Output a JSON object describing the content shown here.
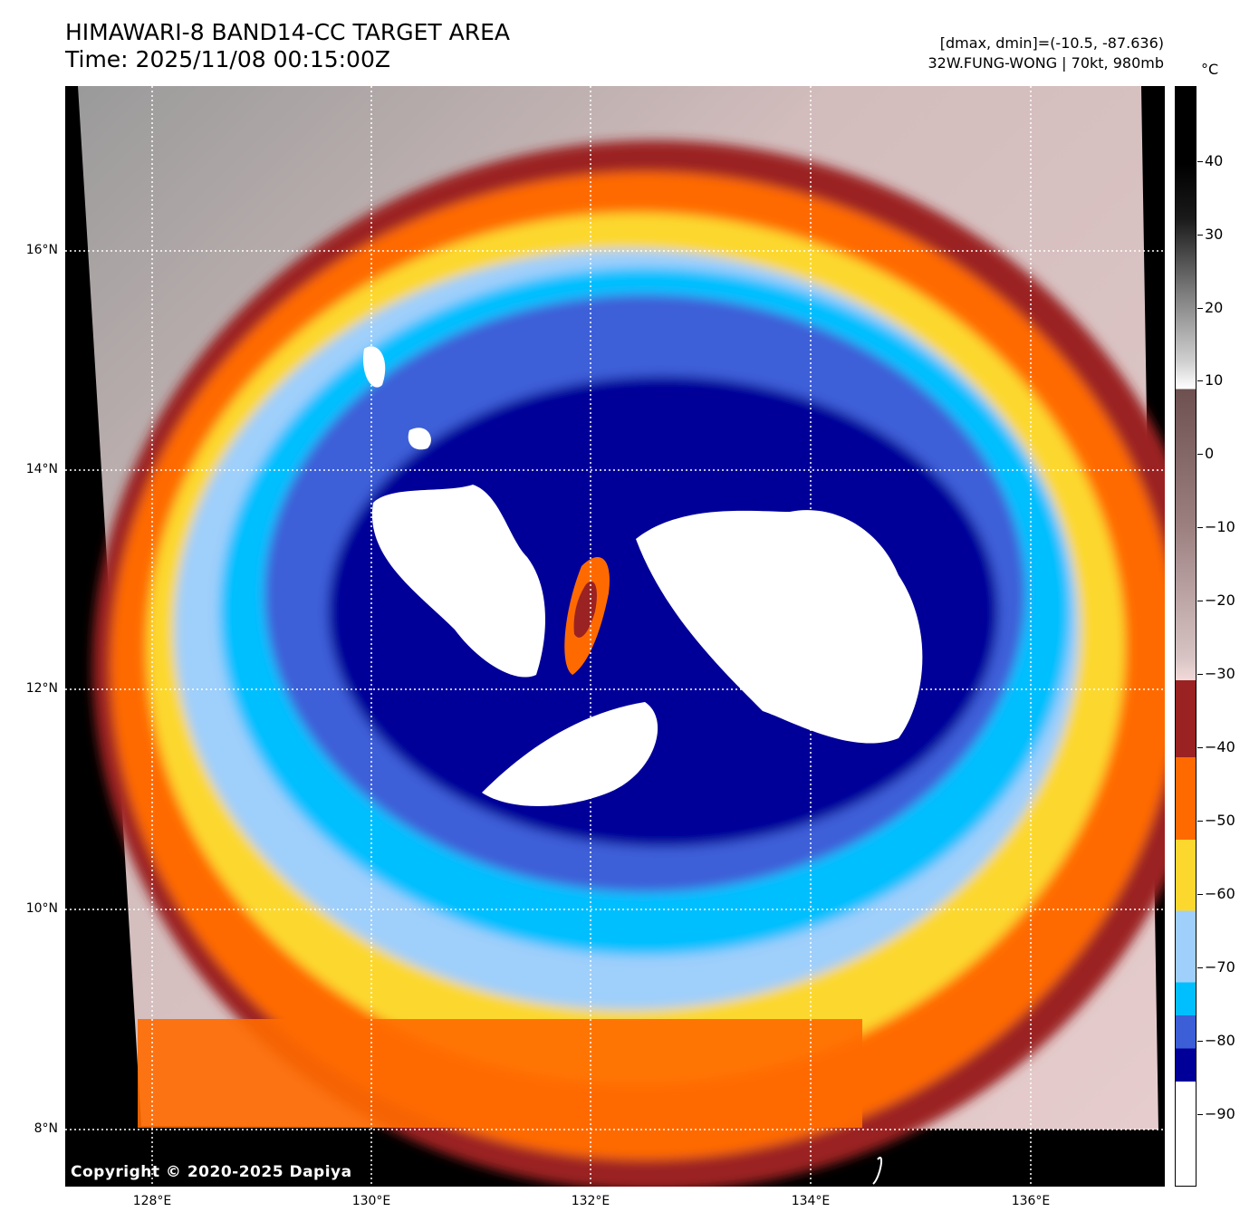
{
  "title_line1": "HIMAWARI-8 BAND14-CC TARGET AREA",
  "title_line2": "Time: 2025/11/08 00:15:00Z",
  "info_line1": "[dmax, dmin]=(-10.5, -87.636)",
  "info_line2": "32W.FUNG-WONG | 70kt, 980mb",
  "copyright": "Copyright © 2020-2025 Dapiya",
  "lat_labels": [
    "16°N",
    "14°N",
    "12°N",
    "10°N",
    "8°N"
  ],
  "lon_labels": [
    "128°E",
    "130°E",
    "132°E",
    "134°E",
    "136°E"
  ],
  "colorbar": {
    "unit": "°C",
    "ticks": [
      "40",
      "30",
      "20",
      "10",
      "0",
      "−10",
      "−20",
      "−30",
      "−40",
      "−50",
      "−60",
      "−70",
      "−80",
      "−90"
    ]
  },
  "colors": {
    "warm_land": "#c9b3b3",
    "dark_red": "#9b2222",
    "orange": "#ff6a00",
    "yellow": "#fcd82f",
    "light_blue": "#9fcffb",
    "cyan": "#00bfff",
    "royal_blue": "#3c5fd8",
    "navy": "#000099",
    "white": "#ffffff"
  }
}
